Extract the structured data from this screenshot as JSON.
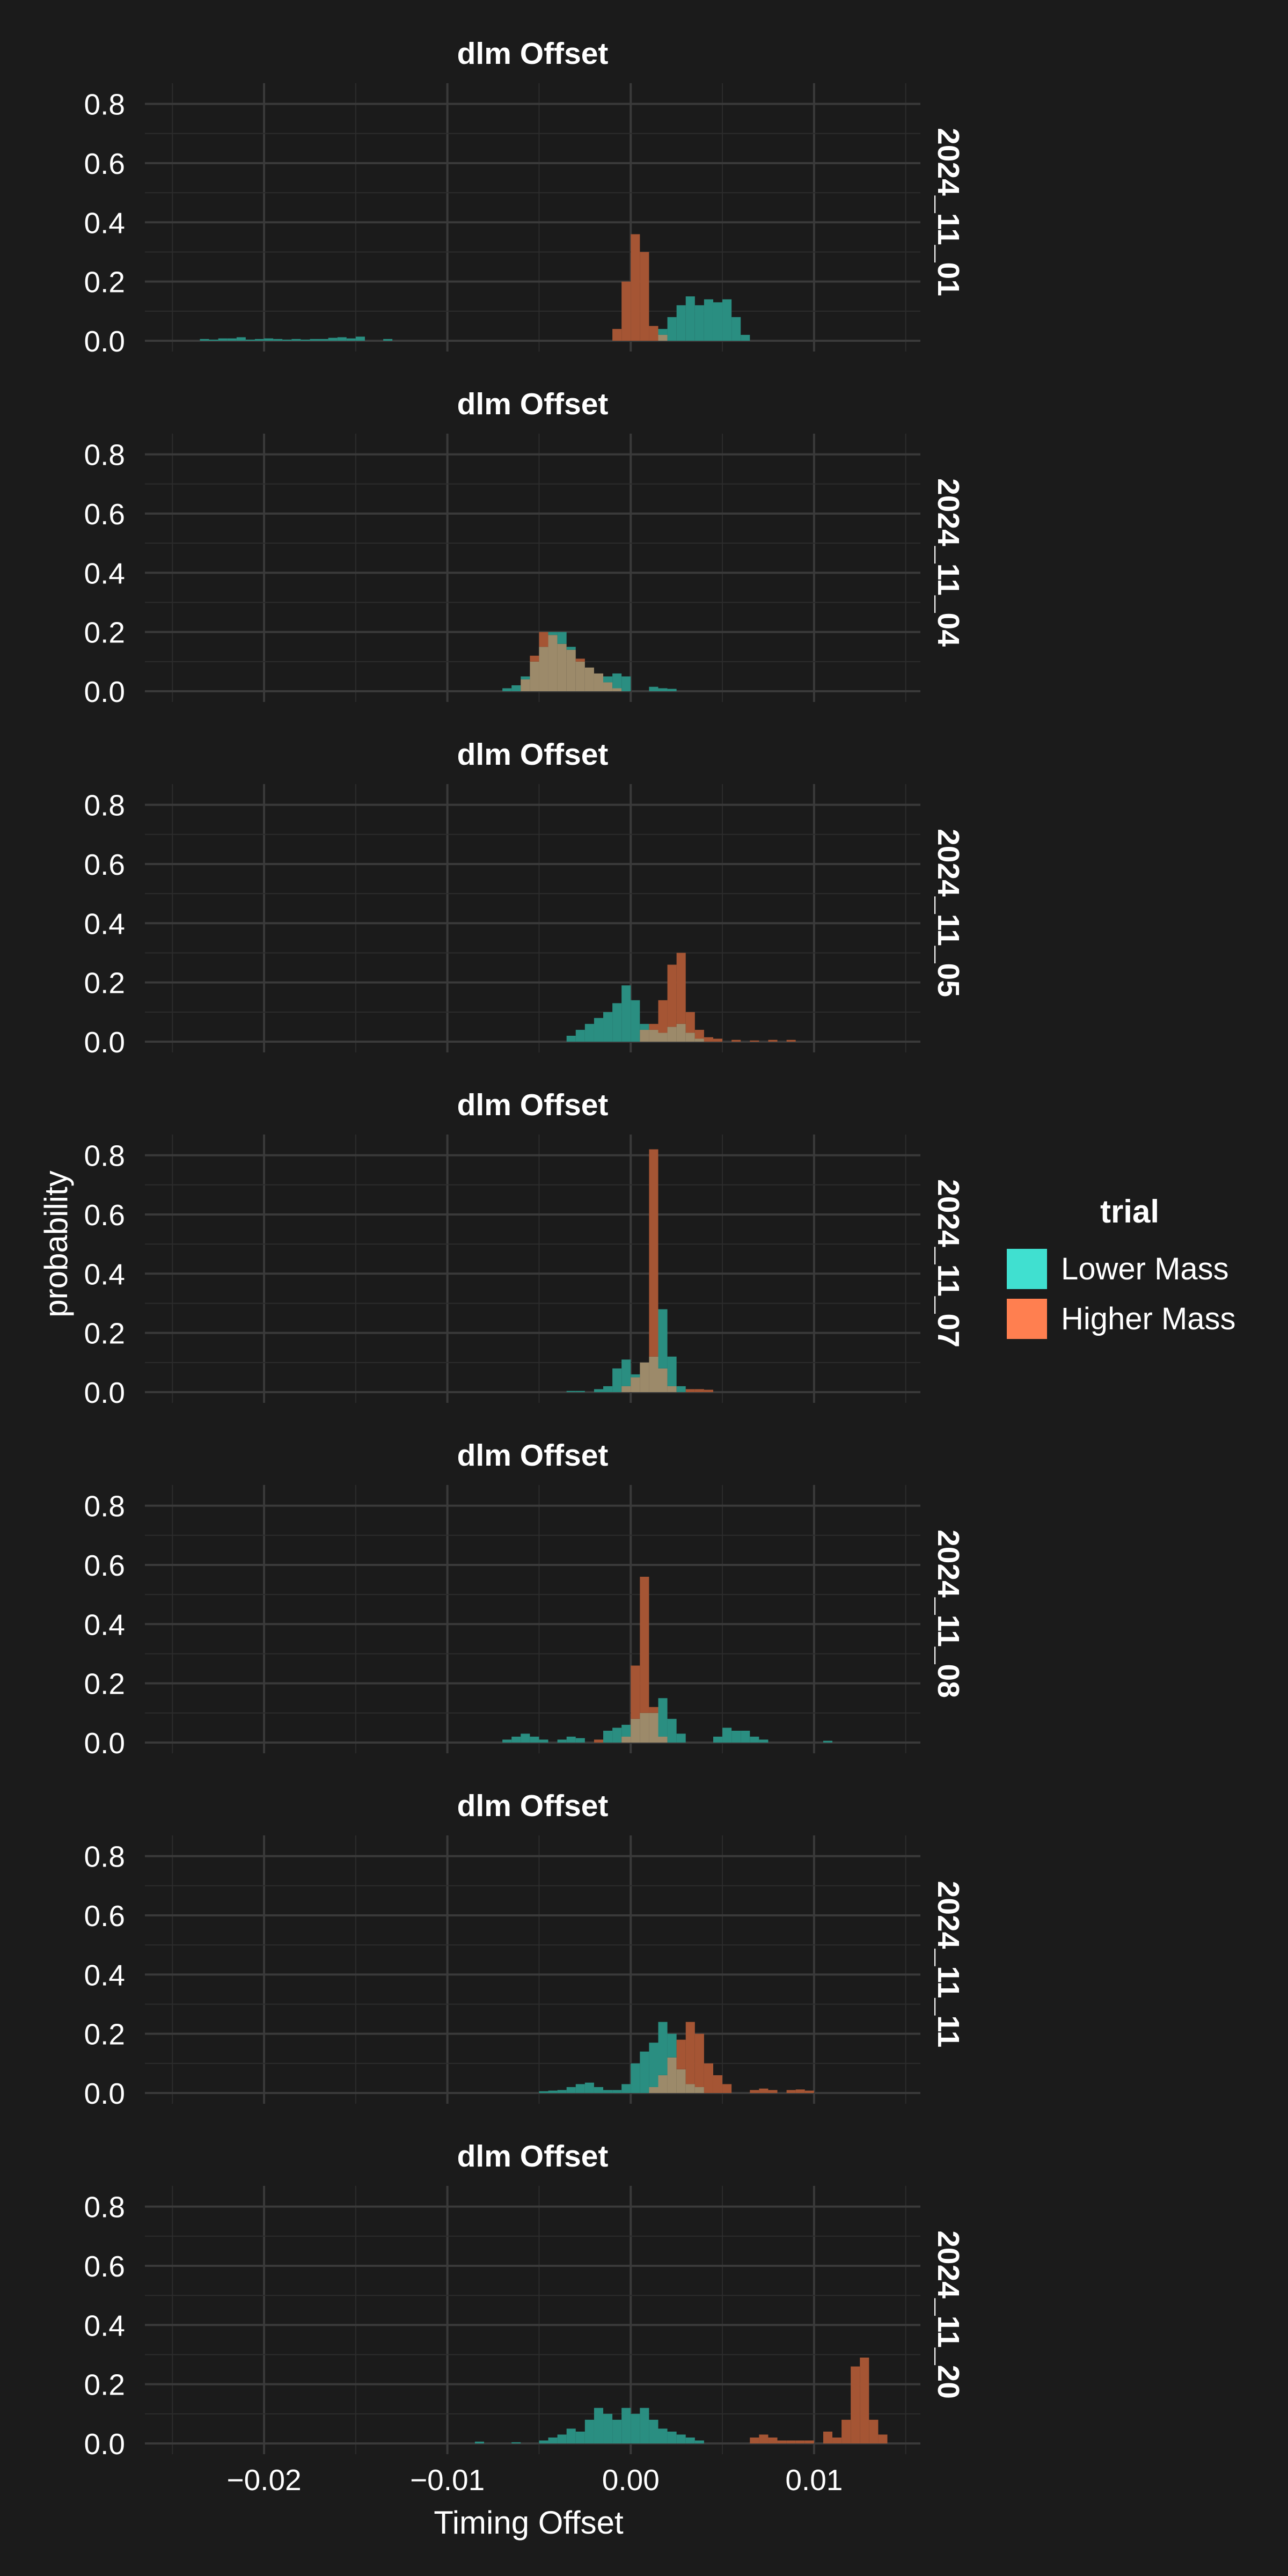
{
  "chart_data": {
    "type": "histogram",
    "bin_width": 0.0005,
    "xlabel": "Timing Offset",
    "ylabel": "probability",
    "xlim": [
      -0.0265,
      0.0158
    ],
    "ylim": [
      0,
      0.87
    ],
    "x_ticks": [
      -0.02,
      -0.01,
      0.0,
      0.01
    ],
    "x_tick_labels": [
      "−0.02",
      "−0.01",
      "0.00",
      "0.01"
    ],
    "y_ticks": [
      0.0,
      0.2,
      0.4,
      0.6,
      0.8
    ],
    "y_tick_labels": [
      "0.0",
      "0.2",
      "0.4",
      "0.6",
      "0.8"
    ],
    "grid": true,
    "legend": {
      "title": "trial",
      "placement": "right",
      "entries": [
        {
          "label": "Lower Mass",
          "color": "#40E0D0"
        },
        {
          "label": "Higher Mass",
          "color": "#FF7F50"
        }
      ]
    },
    "colors": {
      "lower": "#2a8e81",
      "higher": "#a55534",
      "overlap": "#9c8a6a"
    },
    "panels": [
      {
        "title": "dlm Offset",
        "strip": "2024_11_01",
        "series": [
          {
            "name": "Lower Mass",
            "bins": [
              [
                -0.0235,
                0.006
              ],
              [
                -0.023,
                0.004
              ],
              [
                -0.0225,
                0.008
              ],
              [
                -0.022,
                0.008
              ],
              [
                -0.0215,
                0.012
              ],
              [
                -0.021,
                0.004
              ],
              [
                -0.0205,
                0.006
              ],
              [
                -0.02,
                0.008
              ],
              [
                -0.0195,
                0.006
              ],
              [
                -0.019,
                0.004
              ],
              [
                -0.0185,
                0.006
              ],
              [
                -0.018,
                0.004
              ],
              [
                -0.0175,
                0.006
              ],
              [
                -0.017,
                0.006
              ],
              [
                -0.0165,
                0.01
              ],
              [
                -0.016,
                0.012
              ],
              [
                -0.0155,
                0.008
              ],
              [
                -0.015,
                0.014
              ],
              [
                -0.0135,
                0.006
              ],
              [
                0.0015,
                0.04
              ],
              [
                0.002,
                0.08
              ],
              [
                0.0025,
                0.12
              ],
              [
                0.003,
                0.15
              ],
              [
                0.0035,
                0.12
              ],
              [
                0.004,
                0.14
              ],
              [
                0.0045,
                0.13
              ],
              [
                0.005,
                0.14
              ],
              [
                0.0055,
                0.08
              ],
              [
                0.006,
                0.02
              ]
            ]
          },
          {
            "name": "Higher Mass",
            "bins": [
              [
                -0.001,
                0.04
              ],
              [
                -0.0005,
                0.2
              ],
              [
                0.0,
                0.36
              ],
              [
                0.0005,
                0.3
              ],
              [
                0.001,
                0.05
              ],
              [
                0.0015,
                0.02
              ]
            ]
          }
        ]
      },
      {
        "title": "dlm Offset",
        "strip": "2024_11_04",
        "series": [
          {
            "name": "Lower Mass",
            "bins": [
              [
                -0.007,
                0.01
              ],
              [
                -0.0065,
                0.02
              ],
              [
                -0.006,
                0.05
              ],
              [
                -0.0055,
                0.1
              ],
              [
                -0.005,
                0.15
              ],
              [
                -0.0045,
                0.2
              ],
              [
                -0.004,
                0.2
              ],
              [
                -0.0035,
                0.15
              ],
              [
                -0.003,
                0.1
              ],
              [
                -0.0025,
                0.08
              ],
              [
                -0.002,
                0.06
              ],
              [
                -0.0015,
                0.05
              ],
              [
                -0.001,
                0.06
              ],
              [
                -0.0005,
                0.05
              ],
              [
                0.001,
                0.015
              ],
              [
                0.0015,
                0.01
              ],
              [
                0.002,
                0.008
              ]
            ]
          },
          {
            "name": "Higher Mass",
            "bins": [
              [
                -0.006,
                0.04
              ],
              [
                -0.0055,
                0.12
              ],
              [
                -0.005,
                0.2
              ],
              [
                -0.0045,
                0.19
              ],
              [
                -0.004,
                0.16
              ],
              [
                -0.0035,
                0.14
              ],
              [
                -0.003,
                0.11
              ],
              [
                -0.0025,
                0.08
              ],
              [
                -0.002,
                0.06
              ],
              [
                -0.0015,
                0.03
              ],
              [
                -0.001,
                0.01
              ]
            ]
          }
        ]
      },
      {
        "title": "dlm Offset",
        "strip": "2024_11_05",
        "series": [
          {
            "name": "Lower Mass",
            "bins": [
              [
                -0.0035,
                0.02
              ],
              [
                -0.003,
                0.04
              ],
              [
                -0.0025,
                0.06
              ],
              [
                -0.002,
                0.08
              ],
              [
                -0.0015,
                0.1
              ],
              [
                -0.001,
                0.13
              ],
              [
                -0.0005,
                0.19
              ],
              [
                0.0,
                0.14
              ],
              [
                0.0005,
                0.06
              ],
              [
                0.001,
                0.04
              ],
              [
                0.0015,
                0.03
              ],
              [
                0.002,
                0.05
              ],
              [
                0.0025,
                0.06
              ],
              [
                0.003,
                0.03
              ],
              [
                0.0035,
                0.01
              ]
            ]
          },
          {
            "name": "Higher Mass",
            "bins": [
              [
                0.0005,
                0.04
              ],
              [
                0.001,
                0.06
              ],
              [
                0.0015,
                0.14
              ],
              [
                0.002,
                0.26
              ],
              [
                0.0025,
                0.3
              ],
              [
                0.003,
                0.1
              ],
              [
                0.0035,
                0.04
              ],
              [
                0.004,
                0.015
              ],
              [
                0.0045,
                0.01
              ],
              [
                0.0055,
                0.006
              ],
              [
                0.0065,
                0.004
              ],
              [
                0.0075,
                0.006
              ],
              [
                0.0085,
                0.006
              ]
            ]
          }
        ]
      },
      {
        "title": "dlm Offset",
        "strip": "2024_11_07",
        "series": [
          {
            "name": "Lower Mass",
            "bins": [
              [
                -0.002,
                0.01
              ],
              [
                -0.0015,
                0.02
              ],
              [
                -0.001,
                0.08
              ],
              [
                -0.0005,
                0.11
              ],
              [
                0.0,
                0.06
              ],
              [
                0.0005,
                0.1
              ],
              [
                0.001,
                0.12
              ],
              [
                0.0015,
                0.28
              ],
              [
                0.002,
                0.12
              ],
              [
                0.0025,
                0.02
              ],
              [
                -0.0035,
                0.004
              ],
              [
                -0.003,
                0.004
              ]
            ]
          },
          {
            "name": "Higher Mass",
            "bins": [
              [
                -0.0005,
                0.02
              ],
              [
                0.0,
                0.05
              ],
              [
                0.0005,
                0.1
              ],
              [
                0.001,
                0.82
              ],
              [
                0.0015,
                0.08
              ],
              [
                0.002,
                0.02
              ],
              [
                0.003,
                0.01
              ],
              [
                0.0035,
                0.01
              ],
              [
                0.004,
                0.008
              ]
            ]
          }
        ]
      },
      {
        "title": "dlm Offset",
        "strip": "2024_11_08",
        "series": [
          {
            "name": "Lower Mass",
            "bins": [
              [
                -0.007,
                0.01
              ],
              [
                -0.0065,
                0.02
              ],
              [
                -0.006,
                0.03
              ],
              [
                -0.0055,
                0.02
              ],
              [
                -0.005,
                0.01
              ],
              [
                -0.004,
                0.01
              ],
              [
                -0.0035,
                0.02
              ],
              [
                -0.003,
                0.015
              ],
              [
                -0.0015,
                0.04
              ],
              [
                -0.001,
                0.05
              ],
              [
                -0.0005,
                0.06
              ],
              [
                0.0,
                0.08
              ],
              [
                0.0005,
                0.1
              ],
              [
                0.001,
                0.1
              ],
              [
                0.0015,
                0.15
              ],
              [
                0.002,
                0.08
              ],
              [
                0.0025,
                0.03
              ],
              [
                0.0045,
                0.02
              ],
              [
                0.005,
                0.05
              ],
              [
                0.0055,
                0.04
              ],
              [
                0.006,
                0.04
              ],
              [
                0.0065,
                0.02
              ],
              [
                0.007,
                0.01
              ],
              [
                0.0105,
                0.006
              ]
            ]
          },
          {
            "name": "Higher Mass",
            "bins": [
              [
                -0.002,
                0.01
              ],
              [
                -0.0005,
                0.02
              ],
              [
                0.0,
                0.26
              ],
              [
                0.0005,
                0.56
              ],
              [
                0.001,
                0.12
              ],
              [
                0.0015,
                0.02
              ]
            ]
          }
        ]
      },
      {
        "title": "dlm Offset",
        "strip": "2024_11_11",
        "series": [
          {
            "name": "Lower Mass",
            "bins": [
              [
                -0.005,
                0.006
              ],
              [
                -0.0045,
                0.008
              ],
              [
                -0.004,
                0.01
              ],
              [
                -0.0035,
                0.02
              ],
              [
                -0.003,
                0.03
              ],
              [
                -0.0025,
                0.035
              ],
              [
                -0.002,
                0.02
              ],
              [
                -0.0015,
                0.01
              ],
              [
                -0.001,
                0.01
              ],
              [
                -0.0005,
                0.03
              ],
              [
                0.0,
                0.1
              ],
              [
                0.0005,
                0.14
              ],
              [
                0.001,
                0.17
              ],
              [
                0.0015,
                0.24
              ],
              [
                0.002,
                0.2
              ],
              [
                0.0025,
                0.08
              ],
              [
                0.003,
                0.03
              ],
              [
                0.0035,
                0.02
              ]
            ]
          },
          {
            "name": "Higher Mass",
            "bins": [
              [
                0.001,
                0.02
              ],
              [
                0.0015,
                0.06
              ],
              [
                0.002,
                0.12
              ],
              [
                0.0025,
                0.18
              ],
              [
                0.003,
                0.24
              ],
              [
                0.0035,
                0.2
              ],
              [
                0.004,
                0.1
              ],
              [
                0.0045,
                0.06
              ],
              [
                0.005,
                0.03
              ],
              [
                0.0065,
                0.01
              ],
              [
                0.007,
                0.015
              ],
              [
                0.0075,
                0.01
              ],
              [
                0.0085,
                0.01
              ],
              [
                0.009,
                0.012
              ],
              [
                0.0095,
                0.008
              ]
            ]
          }
        ]
      },
      {
        "title": "dlm Offset",
        "strip": "2024_11_20",
        "series": [
          {
            "name": "Lower Mass",
            "bins": [
              [
                -0.0085,
                0.006
              ],
              [
                -0.0065,
                0.004
              ],
              [
                -0.005,
                0.01
              ],
              [
                -0.0045,
                0.02
              ],
              [
                -0.004,
                0.03
              ],
              [
                -0.0035,
                0.05
              ],
              [
                -0.003,
                0.04
              ],
              [
                -0.0025,
                0.08
              ],
              [
                -0.002,
                0.12
              ],
              [
                -0.0015,
                0.1
              ],
              [
                -0.001,
                0.08
              ],
              [
                -0.0005,
                0.12
              ],
              [
                0.0,
                0.1
              ],
              [
                0.0005,
                0.12
              ],
              [
                0.001,
                0.08
              ],
              [
                0.0015,
                0.05
              ],
              [
                0.002,
                0.04
              ],
              [
                0.0025,
                0.03
              ],
              [
                0.003,
                0.02
              ],
              [
                0.0035,
                0.01
              ]
            ]
          },
          {
            "name": "Higher Mass",
            "bins": [
              [
                0.0065,
                0.02
              ],
              [
                0.007,
                0.03
              ],
              [
                0.0075,
                0.02
              ],
              [
                0.008,
                0.01
              ],
              [
                0.0085,
                0.01
              ],
              [
                0.009,
                0.01
              ],
              [
                0.0095,
                0.01
              ],
              [
                0.0105,
                0.04
              ],
              [
                0.011,
                0.02
              ],
              [
                0.0115,
                0.08
              ],
              [
                0.012,
                0.26
              ],
              [
                0.0125,
                0.29
              ],
              [
                0.013,
                0.08
              ],
              [
                0.0135,
                0.03
              ]
            ]
          }
        ]
      }
    ]
  }
}
